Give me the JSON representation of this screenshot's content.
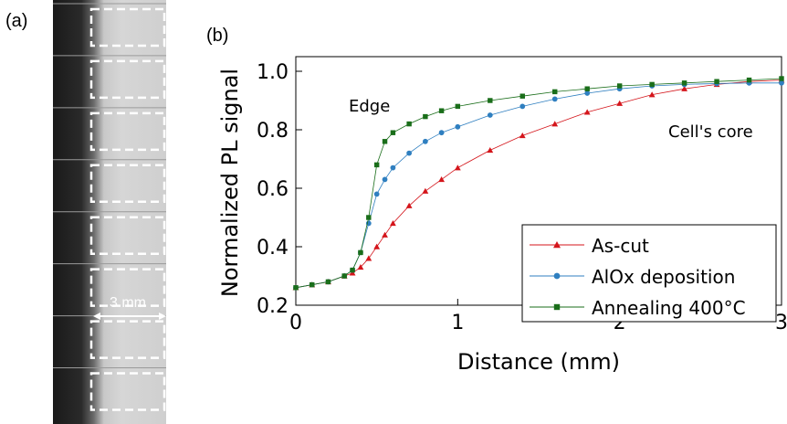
{
  "panel_labels": {
    "a": "(a)",
    "b": "(b)"
  },
  "image_panel": {
    "scale_bar_label": "3 mm",
    "boxes_count": 8
  },
  "chart_data": {
    "type": "scatter",
    "xlabel": "Distance (mm)",
    "ylabel": "Normalized PL signal",
    "xlim": [
      0,
      3
    ],
    "ylim": [
      0.2,
      1.05
    ],
    "xticks": [
      0,
      1,
      2,
      3
    ],
    "xtick_labels": [
      "0",
      "1",
      "2",
      "3"
    ],
    "yticks": [
      0.2,
      0.4,
      0.6,
      0.8,
      1.0
    ],
    "ytick_labels": [
      "0.2",
      "0.4",
      "0.6",
      "0.8",
      "1.0"
    ],
    "annotations": [
      "Edge",
      "Cell's core"
    ],
    "legend_position": "bottom-right",
    "series": [
      {
        "name": "As-cut",
        "color": "#d4151b",
        "marker": "triangle",
        "x": [
          0,
          0.1,
          0.2,
          0.3,
          0.35,
          0.4,
          0.45,
          0.5,
          0.55,
          0.6,
          0.7,
          0.8,
          0.9,
          1.0,
          1.2,
          1.4,
          1.6,
          1.8,
          2.0,
          2.2,
          2.4,
          2.6,
          2.8,
          3.0
        ],
        "y": [
          0.26,
          0.27,
          0.28,
          0.3,
          0.31,
          0.33,
          0.36,
          0.4,
          0.44,
          0.48,
          0.54,
          0.59,
          0.63,
          0.67,
          0.73,
          0.78,
          0.82,
          0.86,
          0.89,
          0.92,
          0.94,
          0.955,
          0.965,
          0.97
        ]
      },
      {
        "name": "AlOx deposition",
        "color": "#2f7fc0",
        "marker": "circle",
        "x": [
          0,
          0.1,
          0.2,
          0.3,
          0.35,
          0.4,
          0.45,
          0.5,
          0.55,
          0.6,
          0.7,
          0.8,
          0.9,
          1.0,
          1.2,
          1.4,
          1.6,
          1.8,
          2.0,
          2.2,
          2.4,
          2.6,
          2.8,
          3.0
        ],
        "y": [
          0.26,
          0.27,
          0.28,
          0.3,
          0.32,
          0.38,
          0.48,
          0.58,
          0.63,
          0.67,
          0.72,
          0.76,
          0.79,
          0.81,
          0.85,
          0.88,
          0.905,
          0.925,
          0.94,
          0.95,
          0.955,
          0.958,
          0.96,
          0.96
        ]
      },
      {
        "name": "Annealing 400°C",
        "color": "#1a6e1a",
        "marker": "square",
        "x": [
          0,
          0.1,
          0.2,
          0.3,
          0.35,
          0.4,
          0.45,
          0.5,
          0.55,
          0.6,
          0.7,
          0.8,
          0.9,
          1.0,
          1.2,
          1.4,
          1.6,
          1.8,
          2.0,
          2.2,
          2.4,
          2.6,
          2.8,
          3.0
        ],
        "y": [
          0.26,
          0.27,
          0.28,
          0.3,
          0.32,
          0.38,
          0.5,
          0.68,
          0.76,
          0.79,
          0.82,
          0.845,
          0.865,
          0.88,
          0.9,
          0.915,
          0.93,
          0.94,
          0.95,
          0.955,
          0.96,
          0.965,
          0.97,
          0.975
        ]
      }
    ]
  }
}
